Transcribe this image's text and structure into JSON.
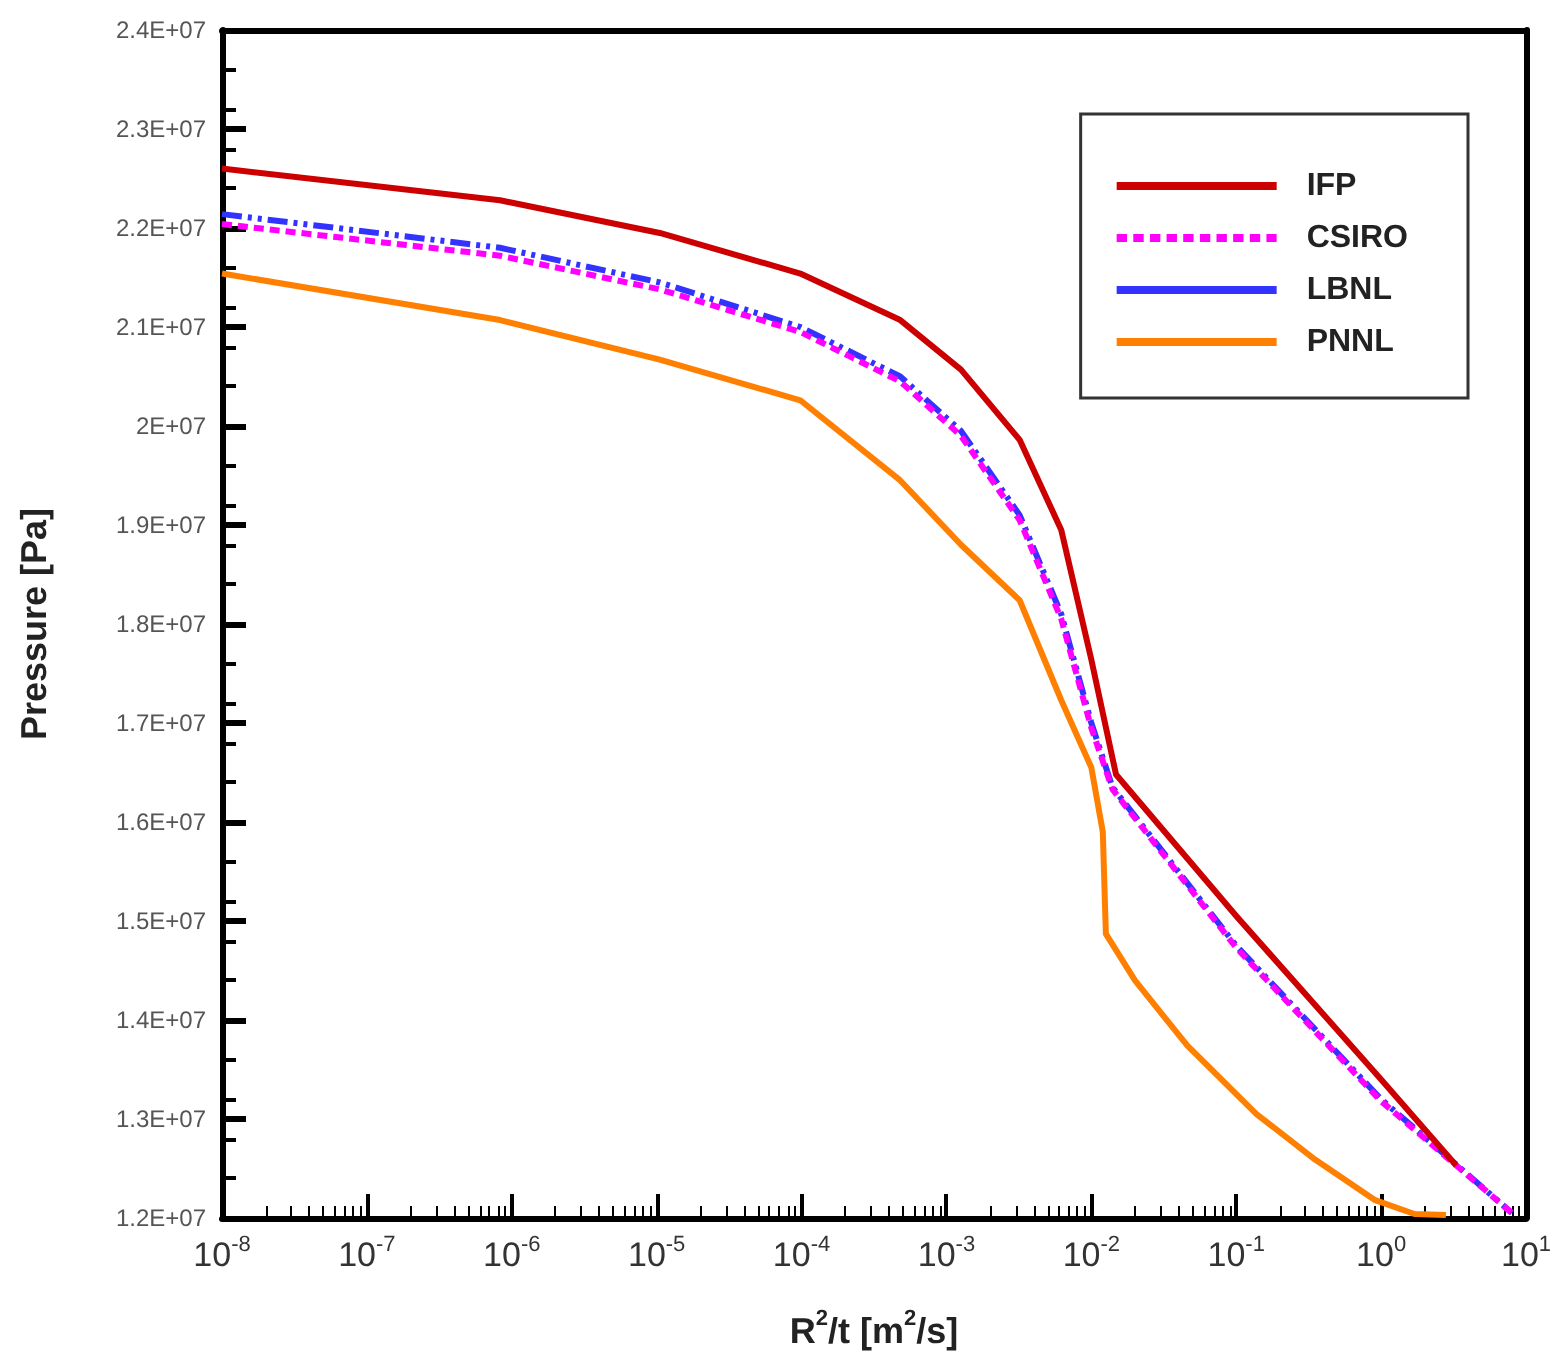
{
  "chart_data": {
    "type": "line",
    "xlabel": "R$^{2}$/t [m$^{2}$/s]",
    "ylabel": "Pressure [Pa]",
    "log": "x",
    "xlim": [
      1e-08,
      10
    ],
    "ylim": [
      12000000,
      24000000
    ],
    "xticks": [
      {
        "value": 1e-08,
        "label": "10$^{-8}$"
      },
      {
        "value": 1e-07,
        "label": "10$^{-7}$"
      },
      {
        "value": 1e-06,
        "label": "10$^{-6}$"
      },
      {
        "value": 1e-05,
        "label": "10$^{-5}$"
      },
      {
        "value": 0.0001,
        "label": "10$^{-4}$"
      },
      {
        "value": 0.001,
        "label": "10$^{-3}$"
      },
      {
        "value": 0.01,
        "label": "10$^{-2}$"
      },
      {
        "value": 0.1,
        "label": "10$^{-1}$"
      },
      {
        "value": 1,
        "label": "10$^{0}$"
      },
      {
        "value": 10,
        "label": "10$^{1}$"
      }
    ],
    "yticks": [
      {
        "value": 12000000,
        "label": "1.2E+07"
      },
      {
        "value": 13000000,
        "label": "1.3E+07"
      },
      {
        "value": 14000000,
        "label": "1.4E+07"
      },
      {
        "value": 15000000,
        "label": "1.5E+07"
      },
      {
        "value": 16000000,
        "label": "1.6E+07"
      },
      {
        "value": 17000000,
        "label": "1.7E+07"
      },
      {
        "value": 18000000,
        "label": "1.8E+07"
      },
      {
        "value": 19000000,
        "label": "1.9E+07"
      },
      {
        "value": 20000000,
        "label": "2E+07"
      },
      {
        "value": 21000000,
        "label": "2.1E+07"
      },
      {
        "value": 22000000,
        "label": "2.2E+07"
      },
      {
        "value": 23000000,
        "label": "2.3E+07"
      },
      {
        "value": 24000000,
        "label": "2.4E+07"
      }
    ],
    "grid": false,
    "legend": "top right",
    "marker": "none",
    "series": [
      {
        "name": "IFP",
        "color": "#cc0000",
        "line_style": "solid",
        "x": [
          1e-08,
          8.3e-07,
          1.05e-05,
          9.8e-05,
          0.00048,
          0.00126,
          0.0032,
          0.0062,
          0.01,
          0.0148,
          0.1,
          1,
          3.3
        ],
        "values": [
          22600000,
          22280000,
          21950000,
          21540000,
          21070000,
          20570000,
          19860000,
          18950000,
          17640000,
          16480000,
          15050000,
          13400000,
          12530000
        ]
      },
      {
        "name": "CSIRO",
        "color": "#ff00ff",
        "line_style": "dashed",
        "x": [
          1e-08,
          8.3e-07,
          1.05e-05,
          9.8e-05,
          0.00048,
          0.00126,
          0.0032,
          0.0062,
          0.01,
          0.014,
          0.1,
          1,
          8
        ],
        "values": [
          22040000,
          21720000,
          21380000,
          20950000,
          20450000,
          19900000,
          19050000,
          18050000,
          16950000,
          16330000,
          14730000,
          13180000,
          12050000
        ]
      },
      {
        "name": "LBNL",
        "color": "#3333ff",
        "line_style": "dashdot",
        "x": [
          1e-08,
          8.3e-07,
          1.05e-05,
          9.8e-05,
          0.00048,
          0.00126,
          0.0032,
          0.0062,
          0.01,
          0.014,
          0.1,
          1,
          8
        ],
        "values": [
          22140000,
          21800000,
          21450000,
          21000000,
          20500000,
          19950000,
          19100000,
          18100000,
          17000000,
          16350000,
          14750000,
          13200000,
          12050000
        ]
      },
      {
        "name": "PNNL",
        "color": "#ff8000",
        "line_style": "solid",
        "x": [
          1e-08,
          8.3e-07,
          1.05e-05,
          9.8e-05,
          0.00048,
          0.00126,
          0.0032,
          0.0062,
          0.01,
          0.012,
          0.0126,
          0.02,
          0.046,
          0.138,
          0.35,
          0.91,
          1.7,
          2.8
        ],
        "values": [
          21540000,
          21070000,
          20670000,
          20260000,
          19450000,
          18800000,
          18240000,
          17230000,
          16550000,
          15900000,
          14870000,
          14400000,
          13740000,
          13050000,
          12590000,
          12180000,
          12040000,
          12030000
        ]
      }
    ]
  }
}
